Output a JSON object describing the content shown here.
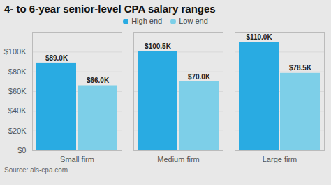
{
  "chart_data": {
    "type": "bar",
    "title": "4- to 6-year senior-level CPA salary ranges",
    "caption": "Source: ais-cpa.com",
    "categories": [
      "Small firm",
      "Medium firm",
      "Large firm"
    ],
    "series": [
      {
        "name": "High end",
        "color": "#29ABE2",
        "values": [
          89000,
          100500,
          110000
        ],
        "value_labels": [
          "$89.0K",
          "$100.5K",
          "$110.0K"
        ]
      },
      {
        "name": "Low end",
        "color": "#7DCFE8",
        "values": [
          66000,
          70000,
          78500
        ],
        "value_labels": [
          "$66.0K",
          "$70.0K",
          "$78.5K"
        ]
      }
    ],
    "ylim": [
      0,
      120000
    ],
    "yticks": [
      {
        "value": 0,
        "label": "$0"
      },
      {
        "value": 20000,
        "label": "$20K"
      },
      {
        "value": 40000,
        "label": "$40K"
      },
      {
        "value": 60000,
        "label": "$60K"
      },
      {
        "value": 80000,
        "label": "$80K"
      },
      {
        "value": 100000,
        "label": "$100K"
      }
    ],
    "grid": true,
    "legend": "top",
    "data_labels": true
  }
}
